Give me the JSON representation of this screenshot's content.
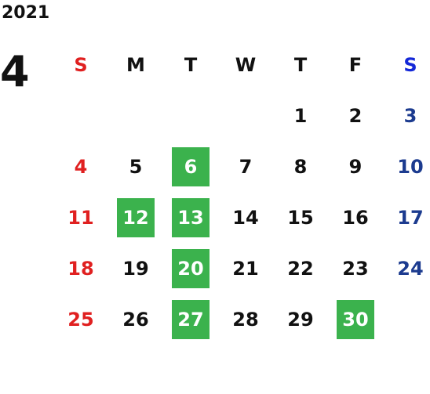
{
  "year": "2021",
  "month": "4",
  "weekdays": [
    "S",
    "M",
    "T",
    "W",
    "T",
    "F",
    "S"
  ],
  "weeks": [
    [
      "",
      "",
      "",
      "",
      "1",
      "2",
      "3"
    ],
    [
      "4",
      "5",
      "6",
      "7",
      "8",
      "9",
      "10"
    ],
    [
      "11",
      "12",
      "13",
      "14",
      "15",
      "16",
      "17"
    ],
    [
      "18",
      "19",
      "20",
      "21",
      "22",
      "23",
      "24"
    ],
    [
      "25",
      "26",
      "27",
      "28",
      "29",
      "30",
      ""
    ]
  ],
  "highlighted_days": [
    "6",
    "12",
    "13",
    "20",
    "27",
    "30"
  ],
  "colors": {
    "highlight": "#3bb24d",
    "sunday": "#e02020",
    "saturday": "#1c3b8f",
    "saturday_header": "#1428d8"
  }
}
